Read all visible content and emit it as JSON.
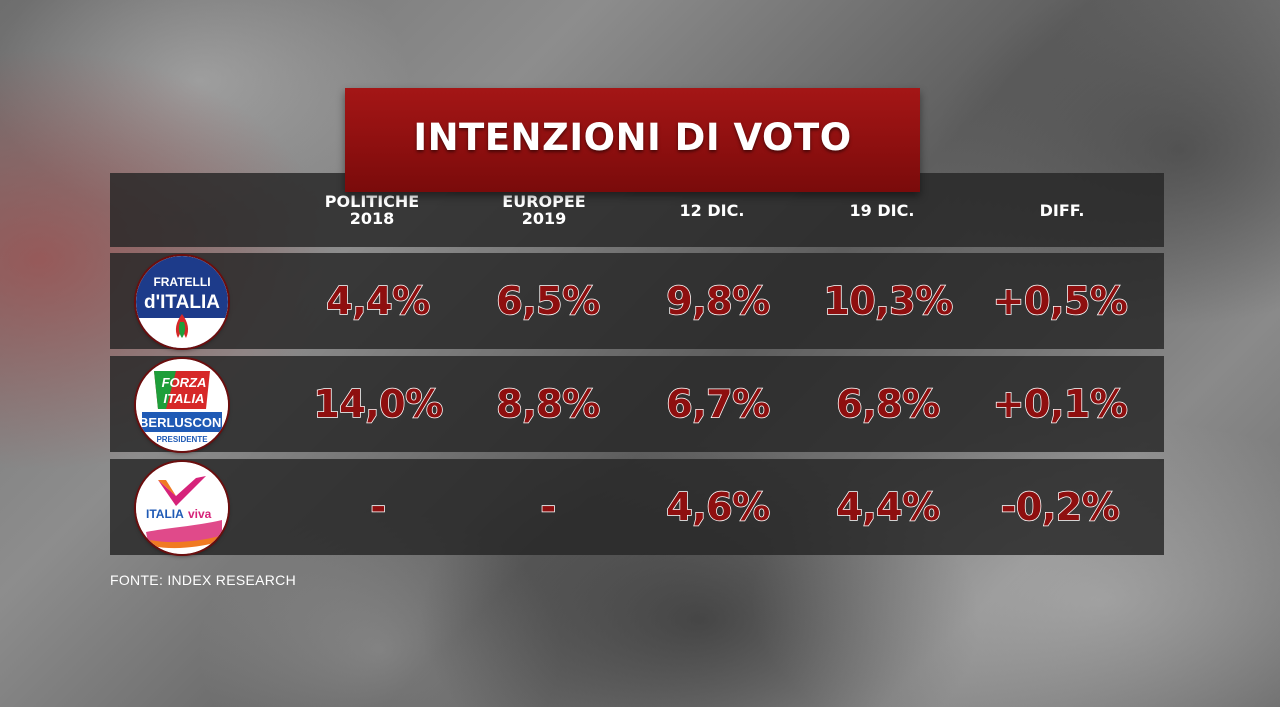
{
  "title": "INTENZIONI DI VOTO",
  "columns": [
    "POLITICHE\n2018",
    "EUROPEE\n2019",
    "12 DIC.",
    "19 DIC.",
    "DIFF."
  ],
  "rows": [
    {
      "logo": {
        "icon": "fratelli-ditalia-logo-icon",
        "line1": "FRATELLI",
        "line2": "d'ITALIA",
        "color": "#1d3b8a"
      },
      "values": [
        "4,4%",
        "6,5%",
        "9,8%",
        "10,3%",
        "+0,5%"
      ]
    },
    {
      "logo": {
        "icon": "forza-italia-logo-icon",
        "line1": "FORZA",
        "line2": "ITALIA",
        "line3": "BERLUSCONI",
        "line4": "PRESIDENTE",
        "color": "#1f5ab5"
      },
      "values": [
        "14,0%",
        "8,8%",
        "6,7%",
        "6,8%",
        "+0,1%"
      ]
    },
    {
      "logo": {
        "icon": "italia-viva-logo-icon",
        "text1": "ITALIA",
        "text2": "viva",
        "color": "#d6237a"
      },
      "values": [
        "-",
        "-",
        "4,6%",
        "4,4%",
        "-0,2%"
      ]
    }
  ],
  "source": "FONTE: INDEX RESEARCH",
  "colors": {
    "title_bg": "#9a1313",
    "value_fill": "#8e0f0f",
    "value_stroke": "#ffffff"
  }
}
